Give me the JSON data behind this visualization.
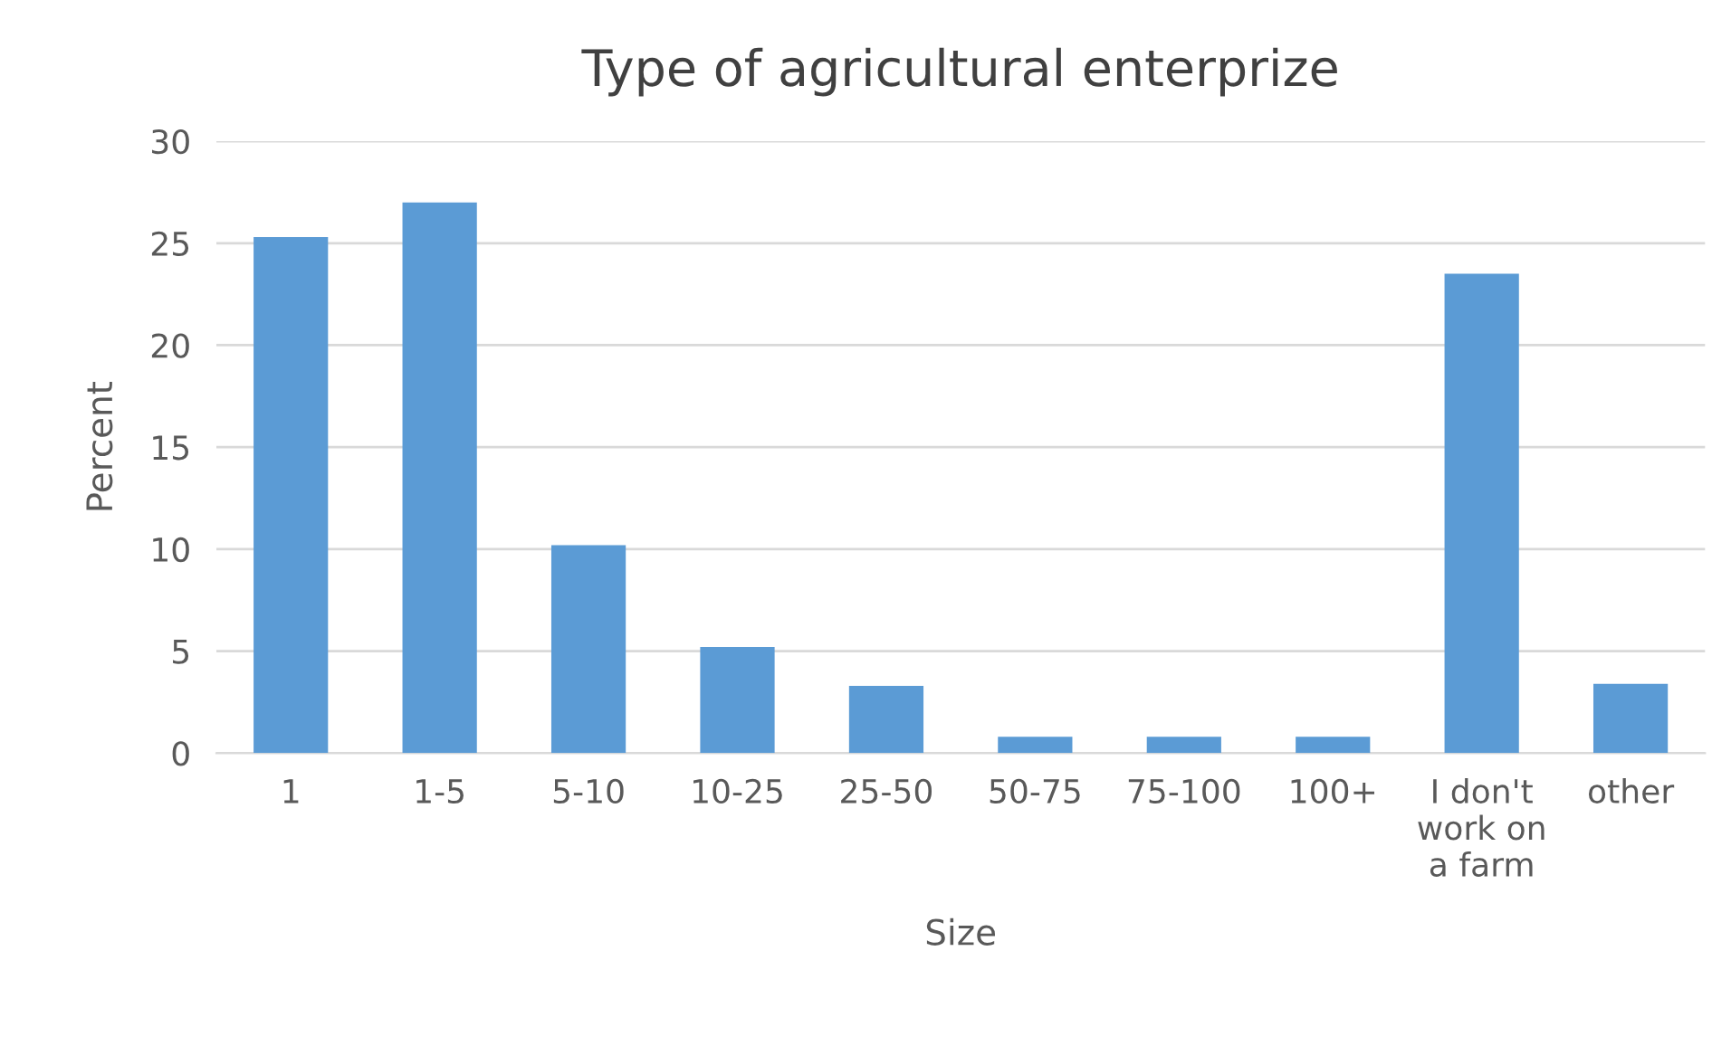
{
  "chart_data": {
    "type": "bar",
    "title": "Type of agricultural enterprize",
    "xlabel": "Size",
    "ylabel": "Percent",
    "categories": [
      "1",
      "1-5",
      "5-10",
      "10-25",
      "25-50",
      "50-75",
      "75-100",
      "100+",
      "I don't\nwork on\na farm",
      "other"
    ],
    "values": [
      25.3,
      27.0,
      10.2,
      5.2,
      3.3,
      0.8,
      0.8,
      0.8,
      23.5,
      3.4
    ],
    "color": "#5b9bd5",
    "ylim": [
      0,
      30
    ],
    "yticks": [
      0,
      5,
      10,
      15,
      20,
      25,
      30
    ],
    "grid": "y"
  }
}
